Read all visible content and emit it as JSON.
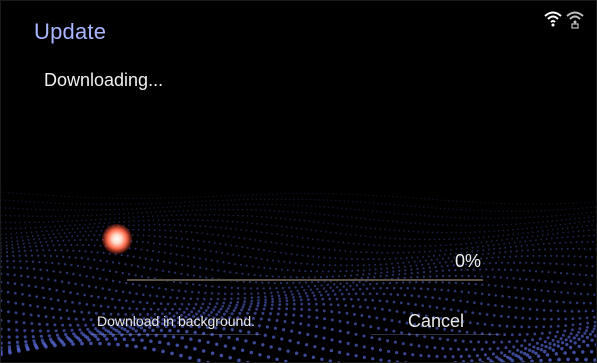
{
  "header": {
    "title": "Update"
  },
  "status": {
    "message": "Downloading...",
    "progress_label": "0%",
    "progress_fraction": 0
  },
  "actions": {
    "background_label": "Download in background.",
    "cancel_label": "Cancel"
  },
  "icons": {
    "wifi": "wifi-icon",
    "wifi_secondary": "wifi-hotspot-icon"
  },
  "colors": {
    "title": "#a9b6ff",
    "text": "#f0f0f0",
    "wave": "#4d5dbf",
    "progress": "#c9b98f"
  }
}
